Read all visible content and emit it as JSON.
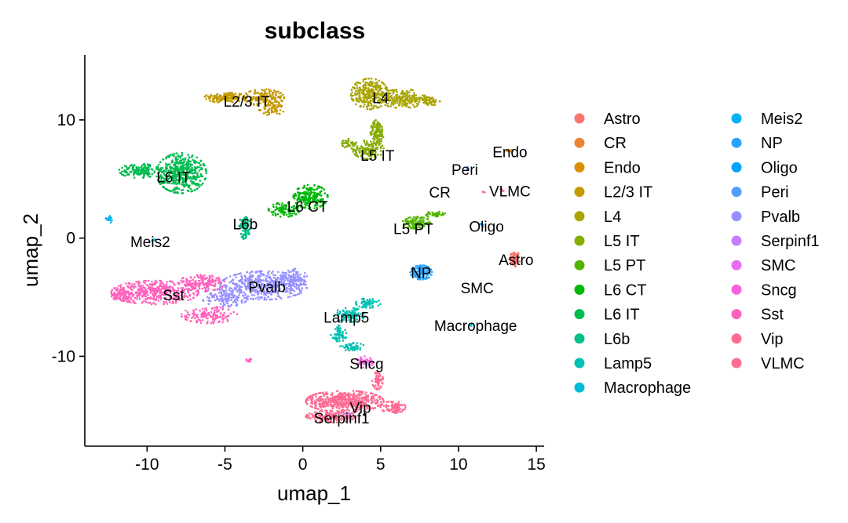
{
  "chart_data": {
    "type": "scatter",
    "title": "subclass",
    "xlabel": "umap_1",
    "ylabel": "umap_2",
    "xlim": [
      -14,
      15.5
    ],
    "ylim": [
      -17.6,
      15.5
    ],
    "xticks": [
      -10,
      -5,
      0,
      5,
      10,
      15
    ],
    "yticks": [
      -10,
      0,
      10
    ],
    "legend_position": "right",
    "series": [
      {
        "name": "Astro",
        "color": "#F8766D",
        "label": "Astro",
        "label_at": [
          13.7,
          -1.8
        ],
        "clusters": [
          {
            "cx": 13.6,
            "cy": -1.8,
            "rx": 0.35,
            "ry": 0.7,
            "n": 70
          }
        ]
      },
      {
        "name": "CR",
        "color": "#EB8335",
        "label": "CR",
        "label_at": [
          8.8,
          3.9
        ],
        "clusters": []
      },
      {
        "name": "Endo",
        "color": "#DA8F00",
        "label": "Endo",
        "label_at": [
          13.3,
          7.3
        ],
        "clusters": [
          {
            "cx": 13.3,
            "cy": 7.4,
            "rx": 0.2,
            "ry": 0.15,
            "n": 6
          }
        ]
      },
      {
        "name": "L2/3 IT",
        "color": "#C49A00",
        "label": "L2/3 IT",
        "label_at": [
          -3.6,
          11.6
        ],
        "clusters": [
          {
            "cx": -5.0,
            "cy": 11.9,
            "rx": 1.3,
            "ry": 0.45,
            "n": 150
          },
          {
            "cx": -2.5,
            "cy": 11.9,
            "rx": 1.3,
            "ry": 0.7,
            "n": 160
          },
          {
            "cx": -2.0,
            "cy": 10.9,
            "rx": 0.8,
            "ry": 0.5,
            "n": 60
          }
        ]
      },
      {
        "name": "L4",
        "color": "#A9A400",
        "label": "L4",
        "label_at": [
          5.0,
          11.9
        ],
        "clusters": [
          {
            "cx": 4.3,
            "cy": 12.2,
            "rx": 1.2,
            "ry": 1.3,
            "n": 280
          },
          {
            "cx": 6.4,
            "cy": 11.8,
            "rx": 1.5,
            "ry": 0.8,
            "n": 200
          },
          {
            "cx": 8.0,
            "cy": 11.6,
            "rx": 0.8,
            "ry": 0.4,
            "n": 60
          }
        ]
      },
      {
        "name": "L5 IT",
        "color": "#86AC00",
        "label": "L5 IT",
        "label_at": [
          4.8,
          7.0
        ],
        "clusters": [
          {
            "cx": 4.8,
            "cy": 9.0,
            "rx": 0.45,
            "ry": 1.0,
            "n": 120
          },
          {
            "cx": 4.2,
            "cy": 7.5,
            "rx": 1.0,
            "ry": 0.8,
            "n": 140
          },
          {
            "cx": 3.0,
            "cy": 8.0,
            "rx": 0.5,
            "ry": 0.4,
            "n": 40
          }
        ]
      },
      {
        "name": "L5 PT",
        "color": "#53B400",
        "label": "L5 PT",
        "label_at": [
          7.1,
          0.8
        ],
        "clusters": [
          {
            "cx": 7.3,
            "cy": 1.3,
            "rx": 0.9,
            "ry": 0.5,
            "n": 120
          },
          {
            "cx": 8.5,
            "cy": 2.0,
            "rx": 0.7,
            "ry": 0.25,
            "n": 40
          }
        ]
      },
      {
        "name": "L6 CT",
        "color": "#00B70B",
        "label": "L6 CT",
        "label_at": [
          0.3,
          2.7
        ],
        "clusters": [
          {
            "cx": 0.5,
            "cy": 3.5,
            "rx": 1.1,
            "ry": 1.0,
            "n": 220
          },
          {
            "cx": -1.2,
            "cy": 2.4,
            "rx": 1.0,
            "ry": 0.6,
            "n": 100
          }
        ]
      },
      {
        "name": "L6 IT",
        "color": "#00BC51",
        "label": "L6 IT",
        "label_at": [
          -8.3,
          5.2
        ],
        "clusters": [
          {
            "cx": -7.8,
            "cy": 5.5,
            "rx": 1.6,
            "ry": 1.7,
            "n": 480
          },
          {
            "cx": -10.5,
            "cy": 5.7,
            "rx": 1.3,
            "ry": 0.6,
            "n": 140
          }
        ]
      },
      {
        "name": "L6b",
        "color": "#00C087",
        "label": "L6b",
        "label_at": [
          -3.7,
          1.2
        ],
        "clusters": [
          {
            "cx": -3.7,
            "cy": 1.2,
            "rx": 0.4,
            "ry": 0.6,
            "n": 70
          },
          {
            "cx": -3.7,
            "cy": 0.3,
            "rx": 0.25,
            "ry": 0.4,
            "n": 30
          }
        ]
      },
      {
        "name": "Lamp5",
        "color": "#00C0B2",
        "label": "Lamp5",
        "label_at": [
          2.8,
          -6.7
        ],
        "clusters": [
          {
            "cx": 3.0,
            "cy": -6.5,
            "rx": 1.0,
            "ry": 0.6,
            "n": 100
          },
          {
            "cx": 4.2,
            "cy": -5.5,
            "rx": 0.8,
            "ry": 0.4,
            "n": 60
          },
          {
            "cx": 2.3,
            "cy": -8.2,
            "rx": 0.5,
            "ry": 0.8,
            "n": 70
          },
          {
            "cx": 3.2,
            "cy": -9.2,
            "rx": 0.8,
            "ry": 0.35,
            "n": 50
          }
        ]
      },
      {
        "name": "Macrophage",
        "color": "#00BCD6",
        "label": "Macrophage",
        "label_at": [
          11.1,
          -7.4
        ],
        "clusters": [
          {
            "cx": 10.8,
            "cy": -7.3,
            "rx": 0.12,
            "ry": 0.12,
            "n": 4
          }
        ]
      },
      {
        "name": "Meis2",
        "color": "#00B3F2",
        "label": "Meis2",
        "label_at": [
          -9.8,
          -0.3
        ],
        "clusters": [
          {
            "cx": -9.6,
            "cy": -0.2,
            "rx": 0.15,
            "ry": 0.15,
            "n": 5
          },
          {
            "cx": -12.4,
            "cy": 1.6,
            "rx": 0.25,
            "ry": 0.3,
            "n": 18
          }
        ]
      },
      {
        "name": "NP",
        "color": "#29A3FF",
        "label": "NP",
        "label_at": [
          7.6,
          -2.9
        ],
        "clusters": [
          {
            "cx": 7.6,
            "cy": -2.9,
            "rx": 0.7,
            "ry": 0.6,
            "n": 150
          }
        ]
      },
      {
        "name": "Oligo",
        "color": "#00A5FF",
        "label": "Oligo",
        "label_at": [
          11.8,
          1.0
        ],
        "clusters": [
          {
            "cx": 11.5,
            "cy": 1.1,
            "rx": 0.1,
            "ry": 0.3,
            "n": 6
          }
        ]
      },
      {
        "name": "Peri",
        "color": "#529EFF",
        "label": "Peri",
        "label_at": [
          10.4,
          5.8
        ],
        "clusters": [
          {
            "cx": 10.6,
            "cy": 5.9,
            "rx": 0.12,
            "ry": 0.12,
            "n": 4
          }
        ]
      },
      {
        "name": "Pvalb",
        "color": "#9590FF",
        "label": "Pvalb",
        "label_at": [
          -2.3,
          -4.1
        ],
        "clusters": [
          {
            "cx": -2.5,
            "cy": -4.0,
            "rx": 2.8,
            "ry": 1.2,
            "n": 450
          },
          {
            "cx": -5.0,
            "cy": -5.0,
            "rx": 1.5,
            "ry": 0.8,
            "n": 120
          },
          {
            "cx": -0.5,
            "cy": -3.5,
            "rx": 0.8,
            "ry": 0.9,
            "n": 80
          }
        ]
      },
      {
        "name": "Serpinf1",
        "color": "#C77CFF",
        "label": "Serpinf1",
        "label_at": [
          2.5,
          -15.2
        ],
        "clusters": [
          {
            "cx": 2.8,
            "cy": -14.9,
            "rx": 0.3,
            "ry": 0.3,
            "n": 12
          }
        ]
      },
      {
        "name": "SMC",
        "color": "#E76BF3",
        "label": "SMC",
        "label_at": [
          11.2,
          -4.2
        ],
        "clusters": [
          {
            "cx": 11.0,
            "cy": -4.0,
            "rx": 0.12,
            "ry": 0.12,
            "n": 4
          }
        ]
      },
      {
        "name": "Sncg",
        "color": "#F962DD",
        "label": "Sncg",
        "label_at": [
          4.1,
          -10.6
        ],
        "clusters": [
          {
            "cx": 4.0,
            "cy": -10.5,
            "rx": 0.5,
            "ry": 0.5,
            "n": 50
          }
        ]
      },
      {
        "name": "Sst",
        "color": "#FF62BC",
        "label": "Sst",
        "label_at": [
          -8.3,
          -4.8
        ],
        "clusters": [
          {
            "cx": -9.5,
            "cy": -4.6,
            "rx": 2.8,
            "ry": 1.0,
            "n": 420
          },
          {
            "cx": -6.5,
            "cy": -3.8,
            "rx": 1.5,
            "ry": 0.7,
            "n": 160
          },
          {
            "cx": -6.0,
            "cy": -6.5,
            "rx": 1.8,
            "ry": 0.7,
            "n": 140
          },
          {
            "cx": -11.7,
            "cy": -4.8,
            "rx": 0.6,
            "ry": 0.5,
            "n": 80
          },
          {
            "cx": -3.5,
            "cy": -10.3,
            "rx": 0.2,
            "ry": 0.15,
            "n": 8
          }
        ]
      },
      {
        "name": "Vip",
        "color": "#FF6C91",
        "label": "Vip",
        "label_at": [
          3.7,
          -14.3
        ],
        "clusters": [
          {
            "cx": 2.7,
            "cy": -13.8,
            "rx": 2.5,
            "ry": 0.9,
            "n": 520
          },
          {
            "cx": 1.8,
            "cy": -15.1,
            "rx": 1.6,
            "ry": 0.5,
            "n": 160
          },
          {
            "cx": 4.8,
            "cy": -12.0,
            "rx": 0.35,
            "ry": 0.8,
            "n": 60
          },
          {
            "cx": 5.8,
            "cy": -14.3,
            "rx": 0.8,
            "ry": 0.5,
            "n": 90
          }
        ]
      },
      {
        "name": "VLMC",
        "color": "#FF6C91",
        "label": "VLMC",
        "label_at": [
          13.3,
          4.0
        ],
        "clusters": [
          {
            "cx": 12.8,
            "cy": 4.1,
            "rx": 0.1,
            "ry": 0.3,
            "n": 6
          },
          {
            "cx": 11.6,
            "cy": 3.9,
            "rx": 0.1,
            "ry": 0.15,
            "n": 3
          }
        ]
      }
    ]
  }
}
